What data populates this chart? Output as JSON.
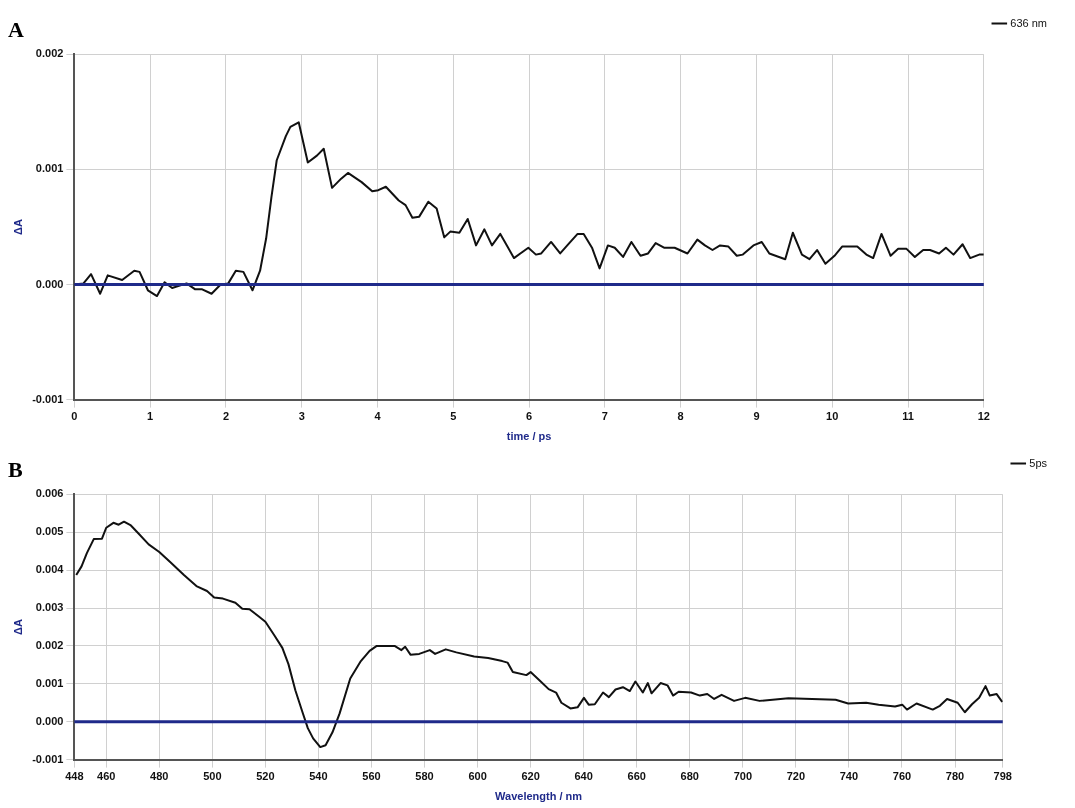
{
  "chart_data": [
    {
      "type": "line",
      "title": "A",
      "xlabel": "time / ps",
      "ylabel": "ΔA",
      "xlim": [
        0,
        12
      ],
      "xticks": [
        0,
        1,
        2,
        3,
        4,
        5,
        6,
        7,
        8,
        9,
        10,
        11,
        12
      ],
      "ylim": [
        -0.001,
        0.002
      ],
      "yticks": [
        {
          "value": -0.001,
          "label": "-0.001"
        },
        {
          "value": 0,
          "label": "0.000"
        },
        {
          "value": 0.001,
          "label": "0.001"
        },
        {
          "value": 0.002,
          "label": "0.002"
        }
      ],
      "grid": true,
      "legend": "top right",
      "ref_lines": [
        {
          "axis": "y",
          "value": 0,
          "color": "#1f2a8a"
        }
      ],
      "x": [
        0,
        0.12,
        0.22,
        0.34,
        0.44,
        0.63,
        0.79,
        0.86,
        0.97,
        1.09,
        1.19,
        1.29,
        1.48,
        1.59,
        1.68,
        1.81,
        1.93,
        2.03,
        2.13,
        2.23,
        2.35,
        2.45,
        2.53,
        2.6,
        2.67,
        2.79,
        2.85,
        2.96,
        3.08,
        3.2,
        3.29,
        3.4,
        3.52,
        3.61,
        3.79,
        3.93,
        4.01,
        4.11,
        4.28,
        4.37,
        4.46,
        4.55,
        4.67,
        4.78,
        4.88,
        4.96,
        5.08,
        5.19,
        5.3,
        5.41,
        5.51,
        5.62,
        5.8,
        5.99,
        6.09,
        6.16,
        6.29,
        6.41,
        6.53,
        6.64,
        6.72,
        6.83,
        6.93,
        7.04,
        7.13,
        7.24,
        7.35,
        7.47,
        7.57,
        7.67,
        7.78,
        7.92,
        8.09,
        8.22,
        8.32,
        8.42,
        8.52,
        8.63,
        8.74,
        8.82,
        8.96,
        9.07,
        9.17,
        9.38,
        9.48,
        9.6,
        9.7,
        9.8,
        9.91,
        10.03,
        10.13,
        10.33,
        10.45,
        10.54,
        10.65,
        10.77,
        10.87,
        10.98,
        11.09,
        11.2,
        11.29,
        11.41,
        11.5,
        11.6,
        11.72,
        11.82,
        11.94,
        12
      ],
      "series": [
        {
          "name": "636 nm",
          "color": "#111111",
          "values": [
            0,
            1e-05,
            9e-05,
            -8e-05,
            8e-05,
            4e-05,
            0.00012,
            0.00011,
            -5e-05,
            -0.0001,
            2e-05,
            -3e-05,
            1e-05,
            -4e-05,
            -4e-05,
            -8e-05,
            0,
            1e-05,
            0.00012,
            0.00011,
            -5e-05,
            0.00012,
            0.0004,
            0.00076,
            0.00108,
            0.00129,
            0.00137,
            0.00141,
            0.00106,
            0.00112,
            0.00118,
            0.00084,
            0.00092,
            0.00097,
            0.00089,
            0.00081,
            0.00082,
            0.00085,
            0.00073,
            0.00069,
            0.00058,
            0.00059,
            0.00072,
            0.00066,
            0.00041,
            0.00046,
            0.00045,
            0.00057,
            0.00034,
            0.00048,
            0.00034,
            0.00044,
            0.00023,
            0.00032,
            0.00026,
            0.00027,
            0.00037,
            0.00027,
            0.00036,
            0.00044,
            0.00044,
            0.00032,
            0.00014,
            0.00034,
            0.00032,
            0.00024,
            0.00037,
            0.00025,
            0.00027,
            0.00036,
            0.00032,
            0.00032,
            0.00027,
            0.00039,
            0.00034,
            0.0003,
            0.00034,
            0.00033,
            0.00025,
            0.00026,
            0.00034,
            0.00037,
            0.00027,
            0.00022,
            0.00045,
            0.00026,
            0.00022,
            0.0003,
            0.00018,
            0.00025,
            0.00033,
            0.00033,
            0.00026,
            0.00023,
            0.00044,
            0.00025,
            0.00031,
            0.00031,
            0.00024,
            0.0003,
            0.0003,
            0.00027,
            0.00032,
            0.00026,
            0.00035,
            0.00023,
            0.00026,
            0.00026
          ]
        }
      ]
    },
    {
      "type": "line",
      "title": "B",
      "xlabel": "Wavelength / nm",
      "ylabel": "ΔA",
      "xlim": [
        448,
        798
      ],
      "xticks": [
        448,
        460,
        480,
        500,
        520,
        540,
        560,
        580,
        600,
        620,
        640,
        660,
        680,
        700,
        720,
        740,
        760,
        780,
        798
      ],
      "ylim": [
        -0.001,
        0.006
      ],
      "yticks": [
        {
          "value": -0.001,
          "label": "-0.001"
        },
        {
          "value": 0,
          "label": "0.000"
        },
        {
          "value": 0.001,
          "label": "0.001"
        },
        {
          "value": 0.002,
          "label": "0.002"
        },
        {
          "value": 0.003,
          "label": "0.003"
        },
        {
          "value": 0.004,
          "label": "0.004"
        },
        {
          "value": 0.005,
          "label": "0.005"
        },
        {
          "value": 0.006,
          "label": "0.006"
        }
      ],
      "grid": true,
      "legend": "top right",
      "ref_lines": [
        {
          "axis": "y",
          "value": 0,
          "color": "#1f2a8a"
        }
      ],
      "x": [
        448.7,
        450.7,
        452.7,
        455.3,
        458.4,
        460,
        462.7,
        464.7,
        466.7,
        469.3,
        472,
        476,
        480,
        484,
        489.3,
        494,
        498,
        500.7,
        504,
        508.7,
        511.3,
        514,
        517.3,
        520,
        523.3,
        526.4,
        528.7,
        531.3,
        534,
        536,
        538,
        540.7,
        542.7,
        545.3,
        548,
        552,
        556,
        559.3,
        562,
        568.7,
        571.3,
        572.7,
        574.7,
        578,
        582,
        584,
        588,
        592,
        598.7,
        604,
        609.3,
        611.3,
        613.3,
        618.4,
        620,
        623.4,
        626.8,
        629.6,
        631.6,
        635,
        637.7,
        640.1,
        641.9,
        644.2,
        647.3,
        649.5,
        652,
        654.8,
        657.4,
        659.5,
        662.3,
        664.2,
        665.6,
        669,
        671.6,
        673.7,
        675.8,
        680.5,
        683.8,
        686.6,
        689.2,
        692,
        696.7,
        700.9,
        706.3,
        717.2,
        735,
        739.7,
        746.5,
        751.2,
        757.4,
        760.1,
        761.9,
        765.5,
        771.6,
        774.3,
        777,
        781,
        783.7,
        786.4,
        789.1,
        791.5,
        793.1,
        795.7,
        797.8
      ],
      "series": [
        {
          "name": "5ps",
          "color": "#111111",
          "values": [
            0.00387,
            0.0041,
            0.00445,
            0.00482,
            0.00483,
            0.00512,
            0.00525,
            0.0052,
            0.00528,
            0.00518,
            0.00498,
            0.00468,
            0.00448,
            0.00422,
            0.00387,
            0.00358,
            0.00345,
            0.00328,
            0.00325,
            0.00314,
            0.00298,
            0.00297,
            0.00279,
            0.00264,
            0.00229,
            0.00195,
            0.00152,
            0.00083,
            0.00025,
            -0.00017,
            -0.00044,
            -0.00067,
            -0.00062,
            -0.00028,
            0.00022,
            0.00114,
            0.0016,
            0.00187,
            0.002,
            0.002,
            0.00189,
            0.00198,
            0.00177,
            0.00179,
            0.00189,
            0.00179,
            0.00191,
            0.00183,
            0.00172,
            0.00168,
            0.0016,
            0.00156,
            0.00131,
            0.00123,
            0.00131,
            0.00109,
            0.00086,
            0.00077,
            0.0005,
            0.00035,
            0.00038,
            0.00063,
            0.00045,
            0.00046,
            0.00077,
            0.00065,
            0.00085,
            0.00091,
            0.00081,
            0.00106,
            0.00077,
            0.00102,
            0.00075,
            0.00102,
            0.00096,
            0.00069,
            0.00079,
            0.00077,
            0.00069,
            0.00073,
            0.0006,
            0.00071,
            0.00055,
            0.00063,
            0.00055,
            0.00062,
            0.00058,
            0.00048,
            0.0005,
            0.00045,
            0.0004,
            0.00045,
            0.00032,
            0.00048,
            0.00032,
            0.00042,
            0.0006,
            0.0005,
            0.00025,
            0.00046,
            0.00063,
            0.00094,
            0.00069,
            0.00073,
            0.00052
          ]
        }
      ]
    }
  ]
}
